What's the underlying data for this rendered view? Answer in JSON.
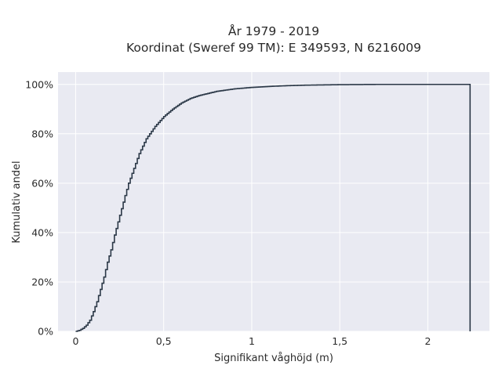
{
  "chart_data": {
    "type": "line",
    "line_shape": "step",
    "title": [
      "År 1979 - 2019",
      "Koordinat (Sweref 99 TM): E 349593, N 6216009"
    ],
    "xlabel": "Signifikant våghöjd (m)",
    "ylabel": "Kumulativ andel",
    "xlim": [
      -0.1,
      2.35
    ],
    "ylim": [
      0,
      1.05
    ],
    "x_ticks": [
      0,
      0.5,
      1,
      1.5,
      2
    ],
    "x_tick_labels": [
      "0",
      "0,5",
      "1",
      "1,5",
      "2"
    ],
    "y_ticks": [
      0,
      0.2,
      0.4,
      0.6,
      0.8,
      1.0
    ],
    "y_tick_labels": [
      "0%",
      "20%",
      "40%",
      "60%",
      "80%",
      "100%"
    ],
    "grid": true,
    "background": "#e9eaf2",
    "line_color": "#2b3847",
    "series": [
      {
        "x": [
          0.0,
          0.02,
          0.04,
          0.06,
          0.08,
          0.1,
          0.12,
          0.14,
          0.16,
          0.18,
          0.2,
          0.22,
          0.25,
          0.28,
          0.3,
          0.33,
          0.36,
          0.4,
          0.45,
          0.5,
          0.55,
          0.6,
          0.65,
          0.7,
          0.8,
          0.9,
          1.0,
          1.1,
          1.2,
          1.3,
          1.4,
          1.5,
          1.7,
          2.0,
          2.23,
          2.24
        ],
        "y": [
          0.0,
          0.004,
          0.012,
          0.025,
          0.045,
          0.08,
          0.12,
          0.17,
          0.22,
          0.28,
          0.33,
          0.39,
          0.47,
          0.55,
          0.6,
          0.66,
          0.72,
          0.78,
          0.83,
          0.87,
          0.9,
          0.925,
          0.943,
          0.955,
          0.972,
          0.982,
          0.988,
          0.992,
          0.995,
          0.997,
          0.998,
          0.999,
          1.0,
          1.0,
          1.0,
          0.0
        ]
      }
    ]
  }
}
